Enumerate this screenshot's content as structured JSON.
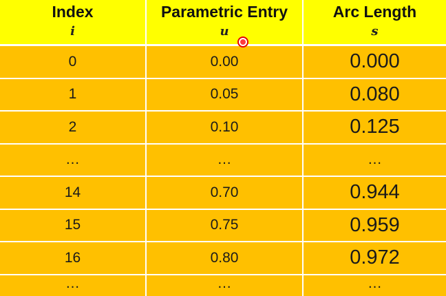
{
  "table": {
    "headers": [
      {
        "title": "Index",
        "symbol": "i"
      },
      {
        "title": "Parametric Entry",
        "symbol": "u"
      },
      {
        "title": "Arc Length",
        "symbol": "s"
      }
    ],
    "rows": [
      [
        "0",
        "0.00",
        "0.000"
      ],
      [
        "1",
        "0.05",
        "0.080"
      ],
      [
        "2",
        "0.10",
        "0.125"
      ],
      [
        "…",
        "…",
        "…"
      ],
      [
        "14",
        "0.70",
        "0.944"
      ],
      [
        "15",
        "0.75",
        "0.959"
      ],
      [
        "16",
        "0.80",
        "0.972"
      ],
      [
        "…",
        "…",
        "…"
      ]
    ]
  },
  "colors": {
    "header_bg": "#ffff00",
    "body_bg": "#ffc000",
    "grid": "#ffffff",
    "cursor": "#ff3b3b"
  },
  "icons": {
    "cursor": "pointer-dot-icon"
  }
}
